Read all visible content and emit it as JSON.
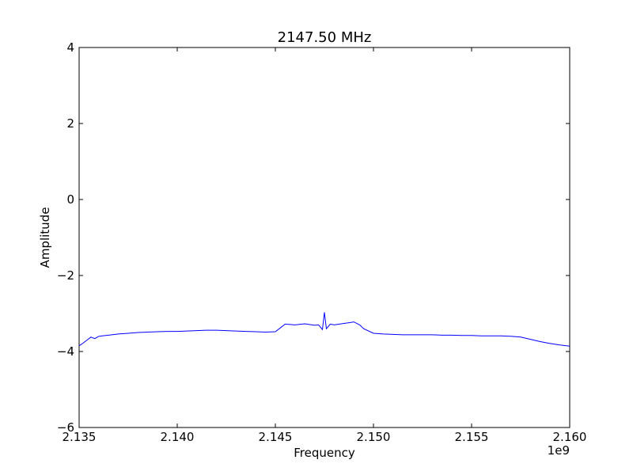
{
  "chart_data": {
    "type": "line",
    "title": "2147.50 MHz",
    "xlabel": "Frequency",
    "ylabel": "Amplitude",
    "x_offset_label": "1e9",
    "xlim": [
      2.135,
      2.16
    ],
    "ylim": [
      -6,
      4
    ],
    "x_ticks": [
      2.135,
      2.14,
      2.145,
      2.15,
      2.155,
      2.16
    ],
    "x_tick_labels": [
      "2.135",
      "2.140",
      "2.145",
      "2.150",
      "2.155",
      "2.160"
    ],
    "y_ticks": [
      4,
      2,
      0,
      -2,
      -4,
      -6
    ],
    "y_tick_labels": [
      "4",
      "2",
      "0",
      "−2",
      "−4",
      "−6"
    ],
    "grid": false,
    "series": [
      {
        "color": "#0000ff",
        "x": [
          2.135,
          2.1352,
          2.1354,
          2.1356,
          2.1358,
          2.136,
          2.1365,
          2.137,
          2.1375,
          2.138,
          2.1385,
          2.139,
          2.1395,
          2.14,
          2.1405,
          2.141,
          2.1415,
          2.142,
          2.1425,
          2.143,
          2.1435,
          2.144,
          2.1445,
          2.145,
          2.1452,
          2.1455,
          2.146,
          2.1465,
          2.147,
          2.1472,
          2.1474,
          2.1475,
          2.1476,
          2.1478,
          2.148,
          2.1485,
          2.1488,
          2.149,
          2.1493,
          2.1495,
          2.15,
          2.1505,
          2.151,
          2.1515,
          2.152,
          2.1525,
          2.153,
          2.1535,
          2.154,
          2.1545,
          2.155,
          2.1555,
          2.156,
          2.1565,
          2.157,
          2.1575,
          2.158,
          2.1585,
          2.159,
          2.1595,
          2.16
        ],
        "y": [
          -3.85,
          -3.78,
          -3.7,
          -3.62,
          -3.66,
          -3.6,
          -3.57,
          -3.54,
          -3.52,
          -3.5,
          -3.49,
          -3.48,
          -3.47,
          -3.47,
          -3.46,
          -3.45,
          -3.44,
          -3.44,
          -3.45,
          -3.46,
          -3.47,
          -3.48,
          -3.49,
          -3.48,
          -3.4,
          -3.28,
          -3.3,
          -3.27,
          -3.31,
          -3.3,
          -3.42,
          -2.97,
          -3.4,
          -3.28,
          -3.3,
          -3.26,
          -3.24,
          -3.22,
          -3.3,
          -3.4,
          -3.52,
          -3.54,
          -3.55,
          -3.56,
          -3.56,
          -3.56,
          -3.56,
          -3.57,
          -3.57,
          -3.58,
          -3.58,
          -3.59,
          -3.59,
          -3.59,
          -3.6,
          -3.62,
          -3.68,
          -3.74,
          -3.79,
          -3.83,
          -3.86
        ]
      }
    ]
  }
}
